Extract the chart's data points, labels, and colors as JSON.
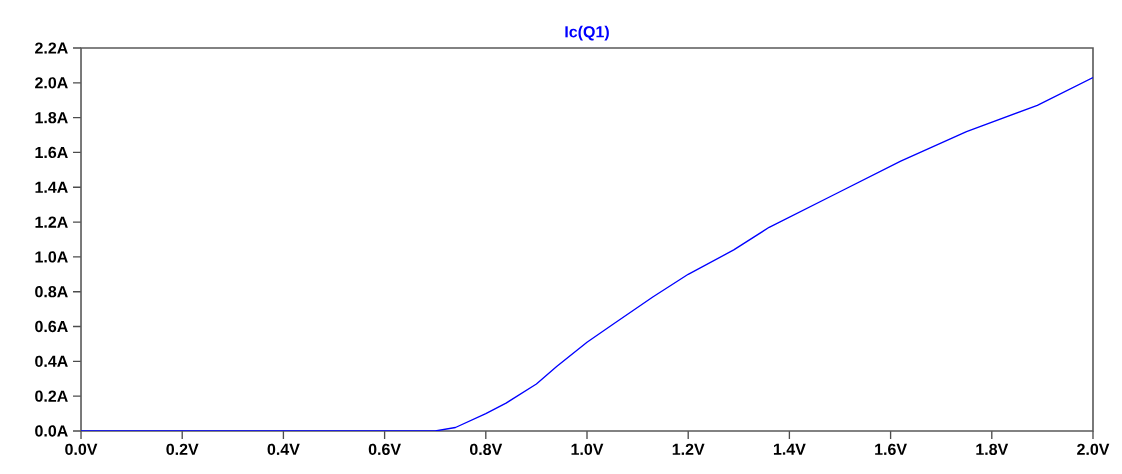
{
  "chart_data": {
    "type": "line",
    "title": "Ic(Q1)",
    "x": [
      0,
      0.7,
      0.74,
      0.8,
      0.84,
      0.9,
      0.94,
      1.0,
      1.05,
      1.13,
      1.2,
      1.29,
      1.36,
      1.49,
      1.62,
      1.75,
      1.89,
      2.0
    ],
    "series": [
      {
        "color": "#0000ff",
        "values": [
          0,
          0,
          0.02,
          0.1,
          0.16,
          0.27,
          0.37,
          0.51,
          0.61,
          0.77,
          0.9,
          1.04,
          1.17,
          1.36,
          1.55,
          1.72,
          1.87,
          2.03
        ]
      }
    ],
    "xlim": [
      0,
      2.0
    ],
    "ylim": [
      0,
      2.2
    ],
    "xticks": [
      {
        "value": 0,
        "label": "0.0V"
      },
      {
        "value": 0.2,
        "label": "0.2V"
      },
      {
        "value": 0.4,
        "label": "0.4V"
      },
      {
        "value": 0.6,
        "label": "0.6V"
      },
      {
        "value": 0.8,
        "label": "0.8V"
      },
      {
        "value": 1.0,
        "label": "1.0V"
      },
      {
        "value": 1.2,
        "label": "1.2V"
      },
      {
        "value": 1.4,
        "label": "1.4V"
      },
      {
        "value": 1.6,
        "label": "1.6V"
      },
      {
        "value": 1.8,
        "label": "1.8V"
      },
      {
        "value": 2.0,
        "label": "2.0V"
      }
    ],
    "yticks": [
      {
        "value": 0,
        "label": "0.0A"
      },
      {
        "value": 0.2,
        "label": "0.2A"
      },
      {
        "value": 0.4,
        "label": "0.4A"
      },
      {
        "value": 0.6,
        "label": "0.6A"
      },
      {
        "value": 0.8,
        "label": "0.8A"
      },
      {
        "value": 1.0,
        "label": "1.0A"
      },
      {
        "value": 1.2,
        "label": "1.2A"
      },
      {
        "value": 1.4,
        "label": "1.4A"
      },
      {
        "value": 1.6,
        "label": "1.6A"
      },
      {
        "value": 1.8,
        "label": "1.8A"
      },
      {
        "value": 2.0,
        "label": "2.0A"
      },
      {
        "value": 2.2,
        "label": "2.2A"
      }
    ],
    "grid": false,
    "marker": "none",
    "line_style": "solid"
  }
}
